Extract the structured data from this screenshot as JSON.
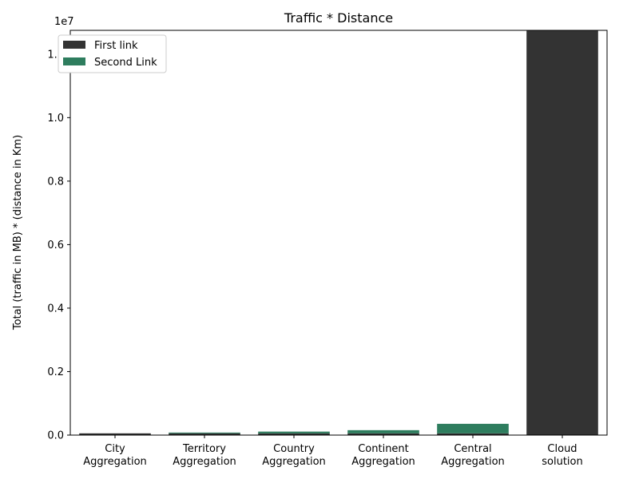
{
  "chart_data": {
    "type": "bar",
    "stacked": true,
    "title": "Traffic * Distance",
    "ylabel": "Total (traffic in MB) * (distance in Km)",
    "xlabel": "",
    "y_offset_label": "1e7",
    "y_scale": 10000000,
    "ylim": [
      0,
      12750000
    ],
    "ytick_values": [
      0,
      0.2,
      0.4,
      0.6,
      0.8,
      1.0,
      1.2
    ],
    "ytick_labels": [
      "0.0",
      "0.2",
      "0.4",
      "0.6",
      "0.8",
      "1.0",
      "1.2"
    ],
    "categories": [
      [
        "City",
        "Aggregation"
      ],
      [
        "Territory",
        "Aggregation"
      ],
      [
        "Country",
        "Aggregation"
      ],
      [
        "Continent",
        "Aggregation"
      ],
      [
        "Central",
        "Aggregation"
      ],
      [
        "Cloud",
        "solution"
      ]
    ],
    "series": [
      {
        "name": "First link",
        "color": "#333333",
        "values": [
          55000,
          55000,
          55000,
          55000,
          55000,
          12750000
        ]
      },
      {
        "name": "Second Link",
        "color": "#2e7d5e",
        "values": [
          0,
          25000,
          55000,
          100000,
          300000,
          0
        ]
      }
    ],
    "legend_position": "top-left",
    "grid": false
  }
}
